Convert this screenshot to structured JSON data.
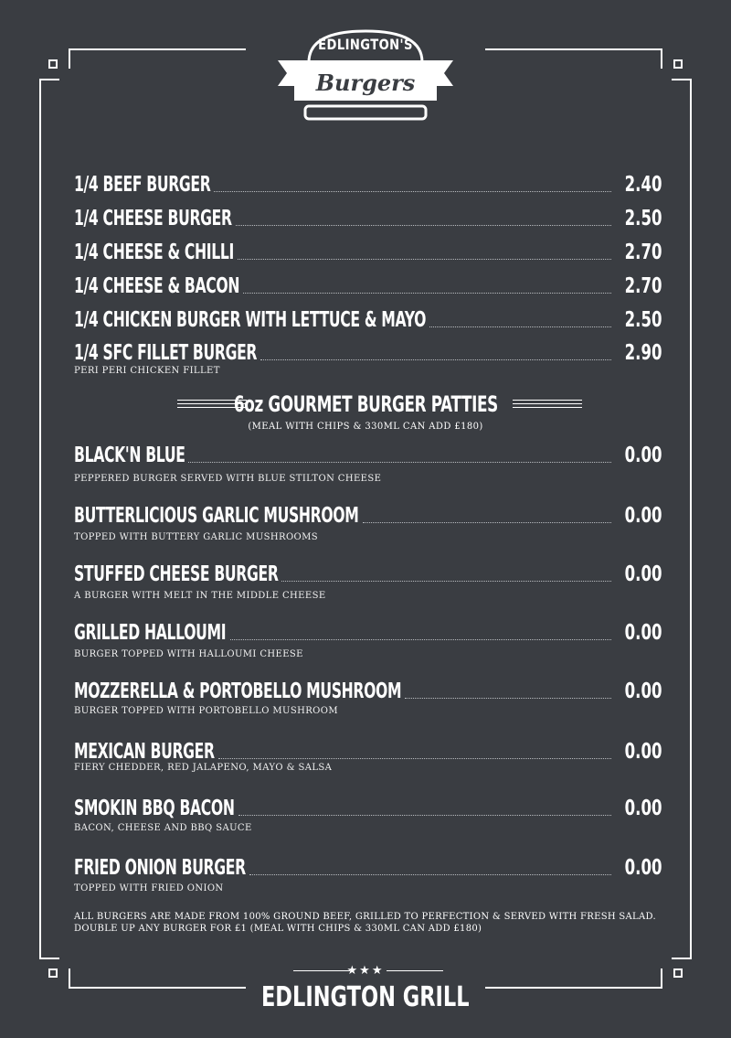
{
  "logo": {
    "top_text": "EDLINGTON'S",
    "bottom_text": "Burgers"
  },
  "quarter_items": [
    {
      "name": "1/4 BEEF  BURGER",
      "price": "2.40",
      "description": ""
    },
    {
      "name": "1/4 CHEESE BURGER",
      "price": "2.50",
      "description": ""
    },
    {
      "name": "1/4 CHEESE & CHILLI",
      "price": "2.70",
      "description": ""
    },
    {
      "name": "1/4 CHEESE & BACON",
      "price": "2.70",
      "description": ""
    },
    {
      "name": "1/4 CHICKEN BURGER WITH LETTUCE & MAYO",
      "price": "2.50",
      "description": ""
    },
    {
      "name": "1/4 SFC FILLET BURGER",
      "price": "2.90",
      "description": "PERI PERI CHICKEN FILLET"
    }
  ],
  "gourmet_section": {
    "title": "6oz GOURMET BURGER PATTIES",
    "subtitle": "(MEAL WITH CHIPS & 330ML CAN ADD £180)"
  },
  "gourmet_items": [
    {
      "name": "BLACK'N BLUE",
      "price": "0.00",
      "description": "PEPPERED BURGER SERVED WITH BLUE STILTON CHEESE"
    },
    {
      "name": "BUTTERLICIOUS GARLIC MUSHROOM",
      "price": "0.00",
      "description": "TOPPED WITH BUTTERY GARLIC MUSHROOMS"
    },
    {
      "name": "STUFFED CHEESE BURGER",
      "price": "0.00",
      "description": "A BURGER WITH MELT IN THE MIDDLE CHEESE"
    },
    {
      "name": "GRILLED HALLOUMI",
      "price": "0.00",
      "description": "BURGER TOPPED WITH HALLOUMI CHEESE"
    },
    {
      "name": "MOZZERELLA & PORTOBELLO MUSHROOM",
      "price": "0.00",
      "description": "BURGER TOPPED WITH PORTOBELLO MUSHROOM"
    },
    {
      "name": "MEXICAN BURGER",
      "price": "0.00",
      "description": "FIERY CHEDDER, RED JALAPENO, MAYO & SALSA"
    },
    {
      "name": "SMOKIN BBQ BACON",
      "price": "0.00",
      "description": "BACON, CHEESE AND BBQ SAUCE"
    },
    {
      "name": "FRIED ONION BURGER",
      "price": "0.00",
      "description": "TOPPED WITH FRIED ONION"
    }
  ],
  "footnote": "ALL BURGERS ARE MADE FROM 100% GROUND BEEF, GRILLED TO PERFECTION & SERVED WITH FRESH SALAD. DOUBLE UP ANY BURGER FOR £1 (MEAL WITH CHIPS & 330ML CAN ADD £180)",
  "footer": {
    "stars": "★★★",
    "name": "EDLINGTON GRILL"
  },
  "colors": {
    "background": "#3a3d42",
    "foreground": "#ffffff"
  }
}
